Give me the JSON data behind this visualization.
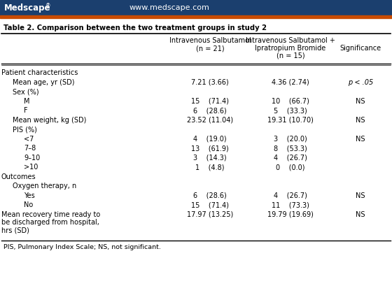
{
  "title": "Table 2. Comparison between the two treatment groups in study 2",
  "col1_hdr": [
    "Intravenous Salbutamol",
    "(n = 21)"
  ],
  "col2_hdr": [
    "Intravenous Salbutamol +",
    "Ipratropium Bromide",
    "(n = 15)"
  ],
  "col3_hdr": "Significance",
  "rows": [
    {
      "label": "Patient characteristics",
      "c1": "",
      "c2": "",
      "c3": "",
      "indent": 0,
      "nlines": 1
    },
    {
      "label": "Mean age, yr (SD)",
      "c1": "7.21 (3.66)",
      "c2": "4.36 (2.74)",
      "c3": "p < .05",
      "indent": 1,
      "nlines": 1
    },
    {
      "label": "Sex (%)",
      "c1": "",
      "c2": "",
      "c3": "",
      "indent": 1,
      "nlines": 1
    },
    {
      "label": "M",
      "c1": "15    (71.4)",
      "c2": "10    (66.7)",
      "c3": "NS",
      "indent": 2,
      "nlines": 1
    },
    {
      "label": "F",
      "c1": "6    (28.6)",
      "c2": "5    (33.3)",
      "c3": "",
      "indent": 2,
      "nlines": 1
    },
    {
      "label": "Mean weight, kg (SD)",
      "c1": "23.52 (11.04)",
      "c2": "19.31 (10.70)",
      "c3": "NS",
      "indent": 1,
      "nlines": 1
    },
    {
      "label": "PIS (%)",
      "c1": "",
      "c2": "",
      "c3": "",
      "indent": 1,
      "nlines": 1
    },
    {
      "label": "<7",
      "c1": "4    (19.0)",
      "c2": "3    (20.0)",
      "c3": "NS",
      "indent": 2,
      "nlines": 1
    },
    {
      "label": "7–8",
      "c1": "13    (61.9)",
      "c2": "8    (53.3)",
      "c3": "",
      "indent": 2,
      "nlines": 1
    },
    {
      "label": "9–10",
      "c1": "3    (14.3)",
      "c2": "4    (26.7)",
      "c3": "",
      "indent": 2,
      "nlines": 1
    },
    {
      "label": ">10",
      "c1": "1    (4.8)",
      "c2": "0    (0.0)",
      "c3": "",
      "indent": 2,
      "nlines": 1
    },
    {
      "label": "Outcomes",
      "c1": "",
      "c2": "",
      "c3": "",
      "indent": 0,
      "nlines": 1
    },
    {
      "label": "Oxygen therapy, n",
      "c1": "",
      "c2": "",
      "c3": "",
      "indent": 1,
      "nlines": 1
    },
    {
      "label": "Yes",
      "c1": "6    (28.6)",
      "c2": "4    (26.7)",
      "c3": "NS",
      "indent": 2,
      "nlines": 1
    },
    {
      "label": "No",
      "c1": "15    (71.4)",
      "c2": "11    (73.3)",
      "c3": "",
      "indent": 2,
      "nlines": 1
    },
    {
      "label": "Mean recovery time ready to\nbe discharged from hospital,\nhrs (SD)",
      "c1": "17.97 (13.25)",
      "c2": "19.79 (19.69)",
      "c3": "NS",
      "indent": 0,
      "nlines": 3
    }
  ],
  "footnote": "PIS, Pulmonary Index Scale; NS, not significant.",
  "header_bg": "#1b3f6e",
  "orange_bar": "#c84b00",
  "bg_color": "#ede8dc",
  "table_bg": "#ffffff"
}
